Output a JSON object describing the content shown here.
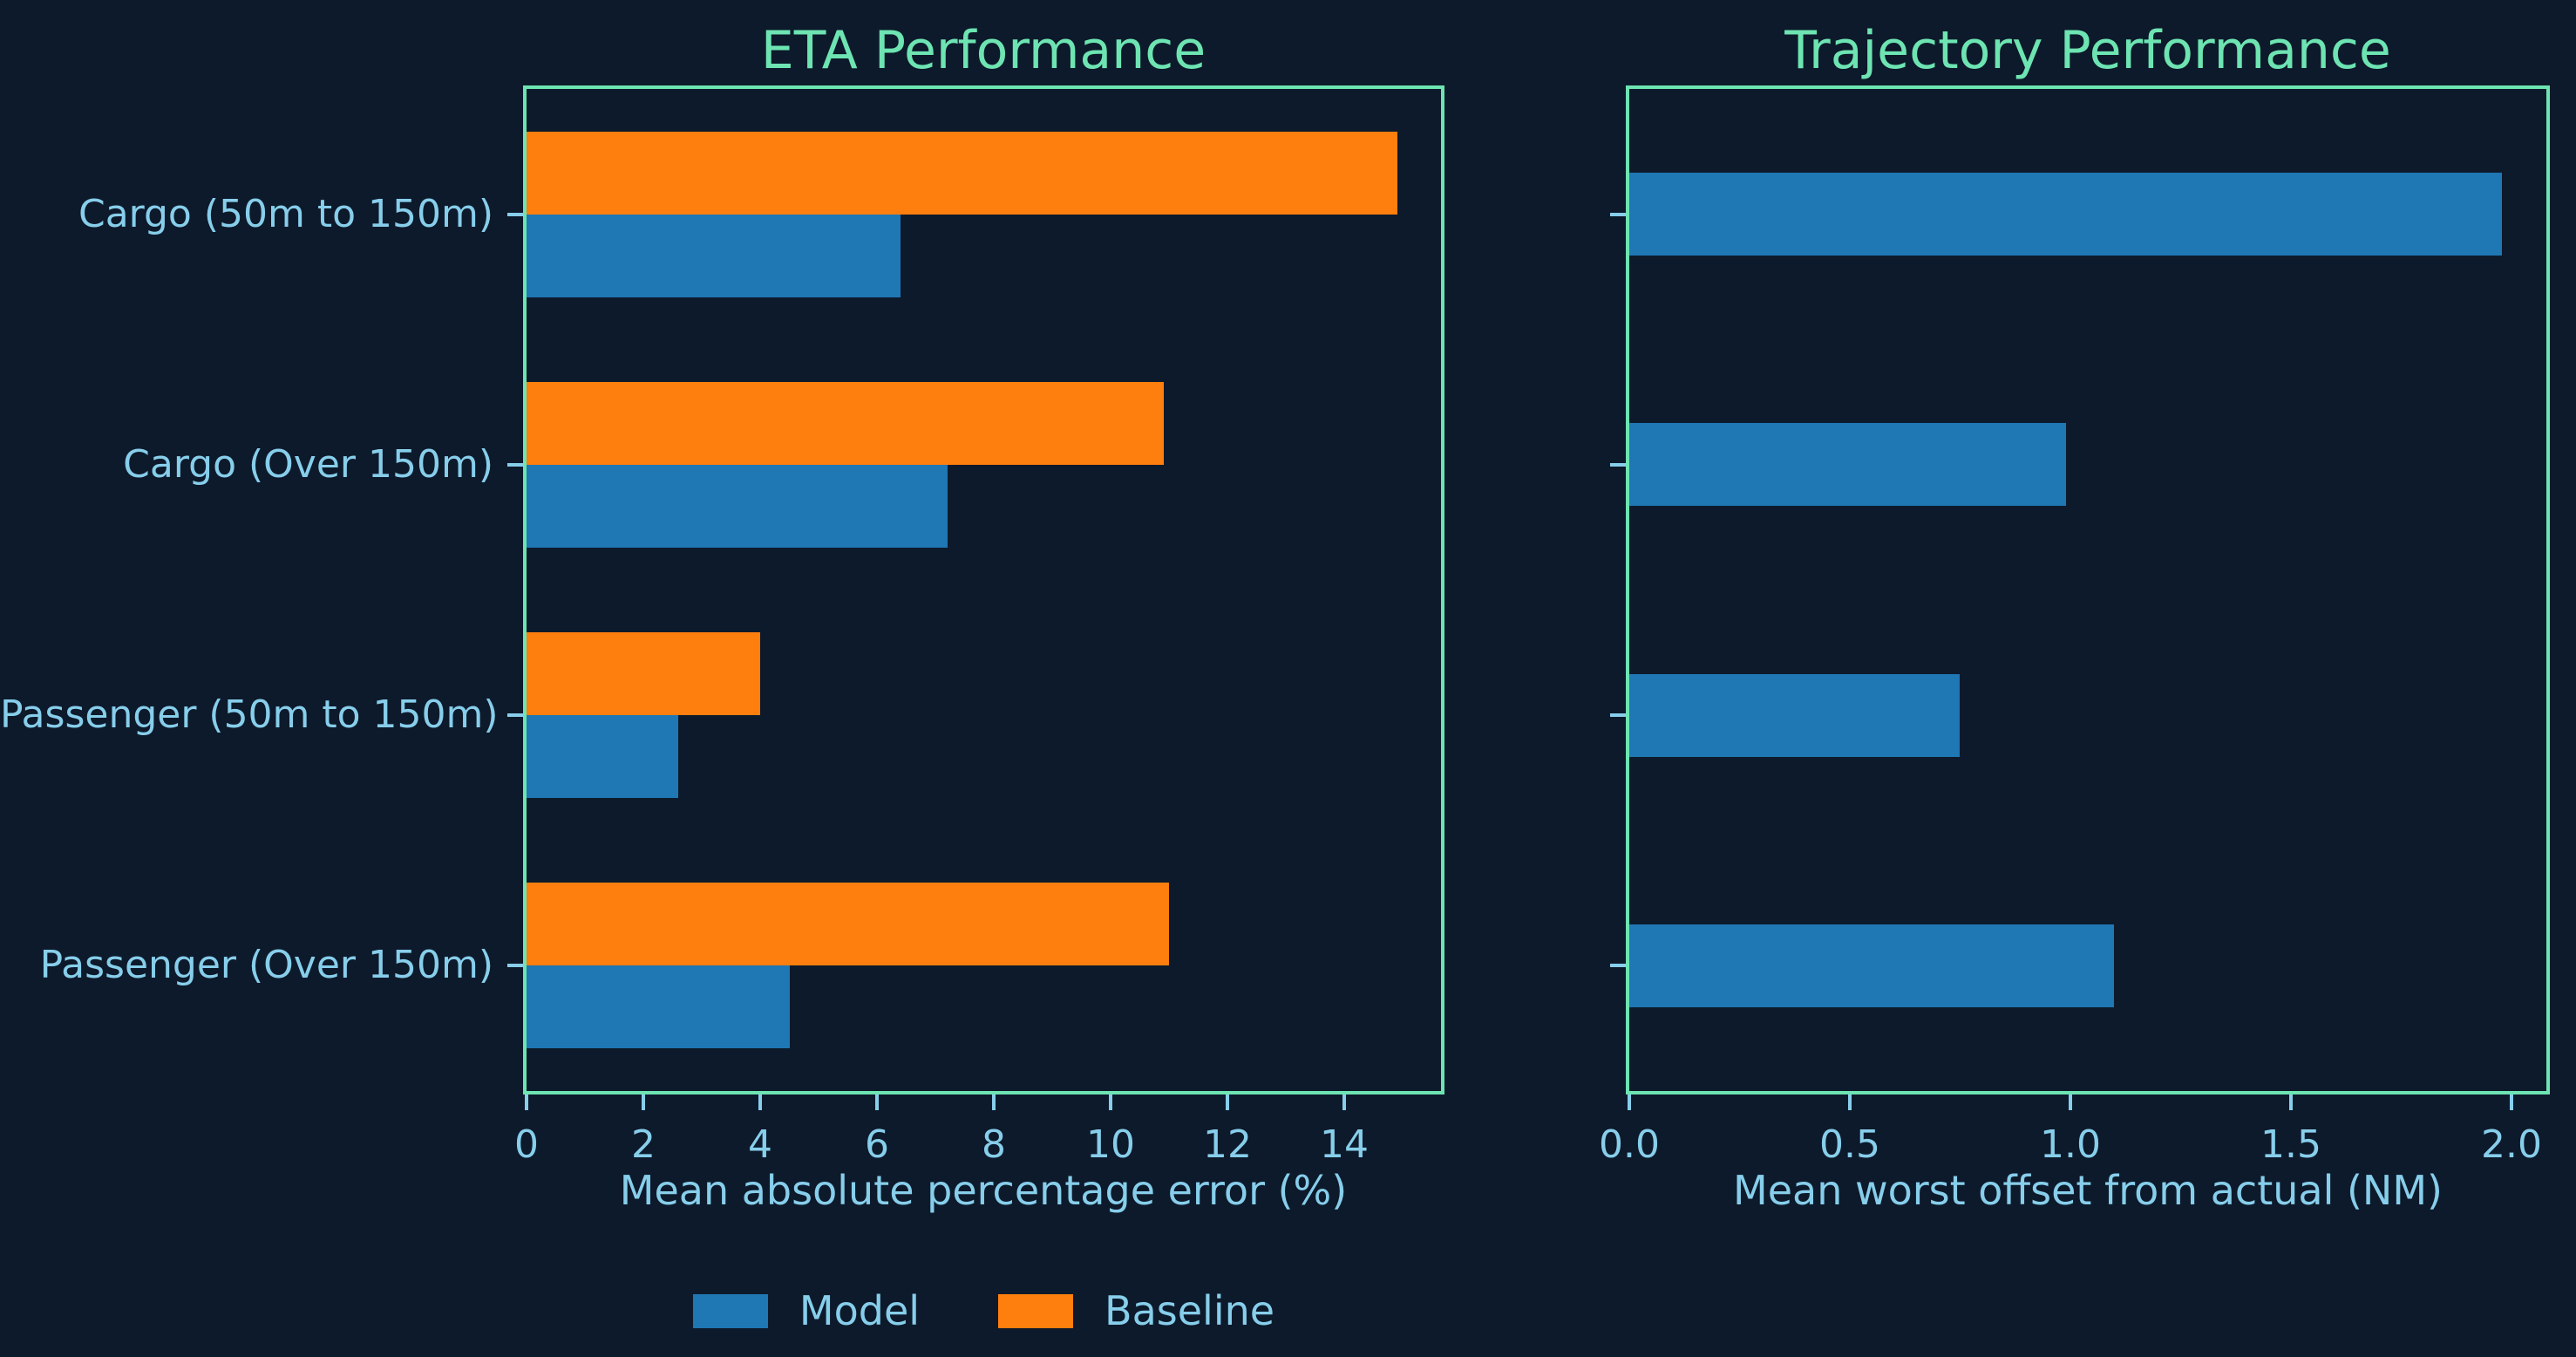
{
  "figure": {
    "background_color": "#0d1a2b",
    "accent_green": "#6de4b2",
    "text_blue": "#87ceeb"
  },
  "chart_data": [
    {
      "type": "bar",
      "orientation": "horizontal",
      "title": "ETA Performance",
      "xlabel": "Mean absolute percentage error (%)",
      "categories": [
        "Cargo (50m to 150m)",
        "Cargo (Over 150m)",
        "Passenger (50m to 150m)",
        "Passenger (Over 150m)"
      ],
      "series": [
        {
          "name": "Model",
          "color": "#1f77b4",
          "values": [
            6.4,
            7.2,
            2.6,
            4.5
          ]
        },
        {
          "name": "Baseline",
          "color": "#ff7f0e",
          "values": [
            14.9,
            10.9,
            4.0,
            11.0
          ]
        }
      ],
      "xlim": [
        0,
        15.65
      ],
      "xticks": [
        0,
        2,
        4,
        6,
        8,
        10,
        12,
        14
      ],
      "xtick_labels": [
        "0",
        "2",
        "4",
        "6",
        "8",
        "10",
        "12",
        "14"
      ],
      "grid": false,
      "show_ytick_labels": true
    },
    {
      "type": "bar",
      "orientation": "horizontal",
      "title": "Trajectory Performance",
      "xlabel": "Mean worst offset from actual (NM)",
      "categories": [
        "Cargo (50m to 150m)",
        "Cargo (Over 150m)",
        "Passenger (50m to 150m)",
        "Passenger (Over 150m)"
      ],
      "series": [
        {
          "name": "Model",
          "color": "#1f77b4",
          "values": [
            1.98,
            0.99,
            0.75,
            1.1
          ]
        }
      ],
      "xlim": [
        0,
        2.08
      ],
      "xticks": [
        0.0,
        0.5,
        1.0,
        1.5,
        2.0
      ],
      "xtick_labels": [
        "0.0",
        "0.5",
        "1.0",
        "1.5",
        "2.0"
      ],
      "grid": false,
      "show_ytick_labels": false
    }
  ],
  "legend": {
    "position": "bottom-left-center",
    "items": [
      {
        "label": "Model",
        "color": "#1f77b4"
      },
      {
        "label": "Baseline",
        "color": "#ff7f0e"
      }
    ]
  }
}
